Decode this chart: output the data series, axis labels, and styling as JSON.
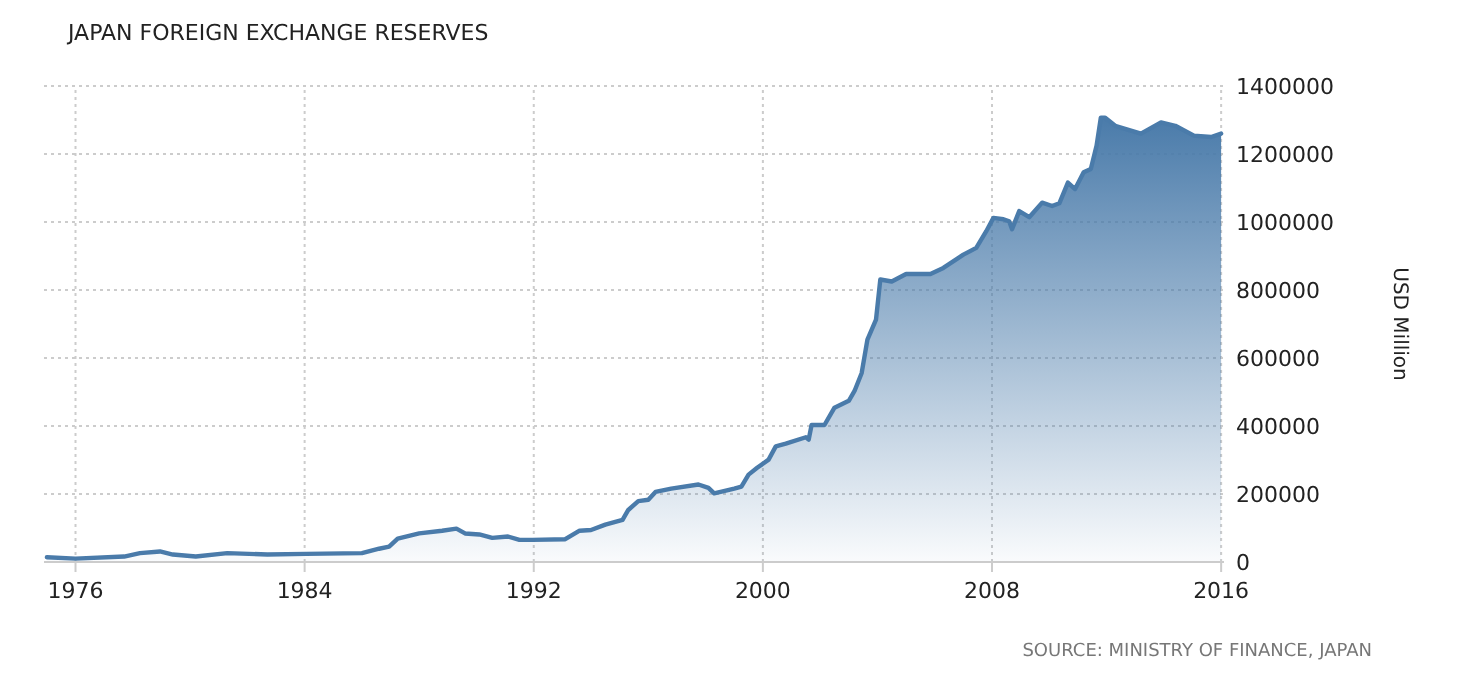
{
  "chart_data": {
    "type": "area",
    "title": "JAPAN FOREIGN EXCHANGE RESERVES",
    "ylabel": "USD Million",
    "annotations": [
      "SOURCE: MINISTRY OF FINANCE, JAPAN"
    ],
    "xlim": [
      1974.9,
      2016.1
    ],
    "xticks": [
      1976,
      1984,
      1992,
      2000,
      2008,
      2016
    ],
    "ylim": [
      0,
      1400000
    ],
    "yticks": [
      0,
      200000,
      400000,
      600000,
      800000,
      1000000,
      1200000,
      1400000
    ],
    "grid": true,
    "series": [
      {
        "color": "#4a7baa",
        "x": [
          1975.0,
          1976,
          1977.7,
          1978.25,
          1978.95,
          1979.4,
          1980.2,
          1981.3,
          1982.7,
          1984.05,
          1986.0,
          1986.6,
          1986.95,
          1987.25,
          1988.0,
          1988.8,
          1989.3,
          1989.6,
          1990.1,
          1990.55,
          1991.1,
          1991.5,
          1991.95,
          1993.1,
          1993.6,
          1994.0,
          1994.5,
          1995.1,
          1995.3,
          1995.65,
          1996.0,
          1996.25,
          1996.8,
          1997.75,
          1998.1,
          1998.3,
          1999.0,
          1999.25,
          1999.5,
          1999.8,
          2000.2,
          2000.45,
          2000.8,
          2001.5,
          2001.6,
          2001.7,
          2002.15,
          2002.5,
          2003.0,
          2003.2,
          2003.45,
          2003.65,
          2003.95,
          2004.1,
          2004.5,
          2005.0,
          2005.85,
          2006.3,
          2007.0,
          2007.45,
          2007.8,
          2008.05,
          2008.4,
          2008.6,
          2008.7,
          2008.95,
          2009.3,
          2009.75,
          2010.1,
          2010.35,
          2010.65,
          2010.9,
          2011.2,
          2011.45,
          2011.65,
          2011.8,
          2011.95,
          2012.3,
          2013.2,
          2013.9,
          2014.4,
          2015.05,
          2015.65,
          2016.0
        ],
        "values": [
          14000,
          10000,
          16000,
          26000,
          31000,
          22000,
          16000,
          26000,
          22000,
          24000,
          26000,
          39000,
          45000,
          69000,
          84000,
          92000,
          98000,
          84000,
          81000,
          71000,
          75000,
          65000,
          65000,
          67000,
          92000,
          94000,
          110000,
          124000,
          153000,
          179000,
          183000,
          206000,
          216000,
          228000,
          218000,
          202000,
          216000,
          222000,
          257000,
          277000,
          301000,
          340000,
          348000,
          367000,
          360000,
          403000,
          403000,
          454000,
          474000,
          503000,
          556000,
          654000,
          713000,
          831000,
          825000,
          847000,
          847000,
          865000,
          904000,
          924000,
          973000,
          1012000,
          1008000,
          1002000,
          979000,
          1032000,
          1014000,
          1057000,
          1047000,
          1055000,
          1116000,
          1097000,
          1146000,
          1156000,
          1224000,
          1307000,
          1307000,
          1283000,
          1260000,
          1293000,
          1283000,
          1254000,
          1250000,
          1260000
        ]
      }
    ]
  }
}
